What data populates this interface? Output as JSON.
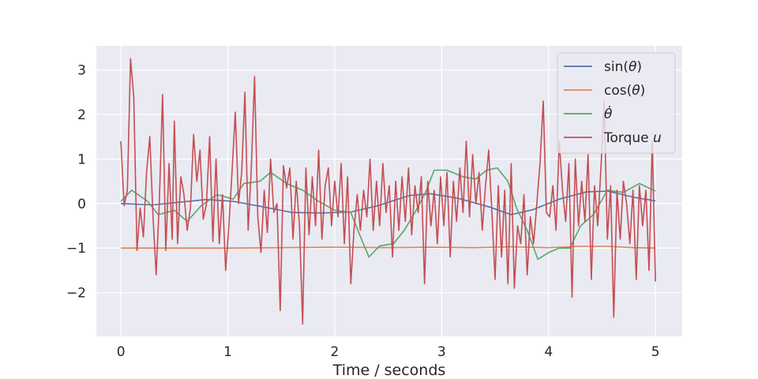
{
  "chart_data": {
    "type": "line",
    "xlabel": "Time / seconds",
    "ylabel": "",
    "xlim": [
      -0.23,
      5.25
    ],
    "ylim": [
      -2.98,
      3.54
    ],
    "xticks": [
      0,
      1,
      2,
      3,
      4,
      5
    ],
    "yticks": [
      3,
      2,
      1,
      0,
      -1,
      -2
    ],
    "ytick_labels": [
      "3",
      "2",
      "1",
      "0",
      "−1",
      "−2"
    ],
    "grid": true,
    "legend_position": "top-right",
    "background": "#eaeaf2",
    "series": [
      {
        "name": "sin(θ)",
        "label_parts": [
          "sin(",
          "θ",
          ")"
        ],
        "color": "#4c72b0",
        "points": [
          [
            0.0,
            0.0
          ],
          [
            0.3,
            -0.03
          ],
          [
            0.55,
            0.03
          ],
          [
            0.8,
            0.09
          ],
          [
            1.05,
            0.05
          ],
          [
            1.3,
            -0.06
          ],
          [
            1.6,
            -0.2
          ],
          [
            1.9,
            -0.21
          ],
          [
            2.15,
            -0.19
          ],
          [
            2.4,
            -0.05
          ],
          [
            2.7,
            0.18
          ],
          [
            2.9,
            0.22
          ],
          [
            3.15,
            0.12
          ],
          [
            3.45,
            -0.08
          ],
          [
            3.65,
            -0.25
          ],
          [
            3.85,
            -0.14
          ],
          [
            4.1,
            0.1
          ],
          [
            4.35,
            0.26
          ],
          [
            4.55,
            0.28
          ],
          [
            4.8,
            0.14
          ],
          [
            5.0,
            0.06
          ]
        ]
      },
      {
        "name": "cos(θ)",
        "label_parts": [
          "cos(",
          "θ",
          ")"
        ],
        "color": "#dd8452",
        "points": [
          [
            0.0,
            -1.0
          ],
          [
            0.5,
            -1.0
          ],
          [
            1.0,
            -1.0
          ],
          [
            1.5,
            -0.99
          ],
          [
            2.0,
            -0.98
          ],
          [
            2.5,
            -0.99
          ],
          [
            2.9,
            -0.98
          ],
          [
            3.3,
            -0.99
          ],
          [
            3.65,
            -0.97
          ],
          [
            4.0,
            -0.99
          ],
          [
            4.3,
            -0.96
          ],
          [
            4.55,
            -0.96
          ],
          [
            4.8,
            -0.99
          ],
          [
            5.0,
            -1.0
          ]
        ]
      },
      {
        "name": "θ̇",
        "label_parts": [
          "",
          "θ̇",
          ""
        ],
        "color": "#55a868",
        "points": [
          [
            0.0,
            0.05
          ],
          [
            0.1,
            0.3
          ],
          [
            0.25,
            0.05
          ],
          [
            0.35,
            -0.25
          ],
          [
            0.5,
            -0.15
          ],
          [
            0.62,
            -0.4
          ],
          [
            0.75,
            -0.05
          ],
          [
            0.9,
            0.2
          ],
          [
            1.05,
            0.1
          ],
          [
            1.15,
            0.45
          ],
          [
            1.3,
            0.5
          ],
          [
            1.4,
            0.7
          ],
          [
            1.55,
            0.45
          ],
          [
            1.7,
            0.3
          ],
          [
            1.85,
            0.05
          ],
          [
            2.0,
            -0.15
          ],
          [
            2.15,
            -0.2
          ],
          [
            2.25,
            -0.8
          ],
          [
            2.32,
            -1.2
          ],
          [
            2.42,
            -0.95
          ],
          [
            2.55,
            -0.9
          ],
          [
            2.65,
            -0.6
          ],
          [
            2.75,
            -0.2
          ],
          [
            2.85,
            0.25
          ],
          [
            2.93,
            0.75
          ],
          [
            3.05,
            0.75
          ],
          [
            3.2,
            0.6
          ],
          [
            3.32,
            0.55
          ],
          [
            3.42,
            0.75
          ],
          [
            3.52,
            0.8
          ],
          [
            3.62,
            0.5
          ],
          [
            3.7,
            -0.1
          ],
          [
            3.8,
            -0.6
          ],
          [
            3.9,
            -1.25
          ],
          [
            4.0,
            -1.1
          ],
          [
            4.1,
            -1.0
          ],
          [
            4.2,
            -1.0
          ],
          [
            4.3,
            -0.5
          ],
          [
            4.42,
            -0.25
          ],
          [
            4.55,
            0.3
          ],
          [
            4.7,
            0.25
          ],
          [
            4.85,
            0.45
          ],
          [
            5.0,
            0.28
          ]
        ]
      },
      {
        "name": "Torque u",
        "label_parts": [
          "Torque ",
          "u",
          ""
        ],
        "color": "#c44e52",
        "points": [
          [
            0.0,
            1.4
          ],
          [
            0.03,
            -0.05
          ],
          [
            0.06,
            0.3
          ],
          [
            0.09,
            3.25
          ],
          [
            0.12,
            2.4
          ],
          [
            0.15,
            -1.05
          ],
          [
            0.18,
            -0.1
          ],
          [
            0.21,
            -0.75
          ],
          [
            0.24,
            0.7
          ],
          [
            0.27,
            1.5
          ],
          [
            0.3,
            -0.3
          ],
          [
            0.33,
            -1.6
          ],
          [
            0.36,
            0.1
          ],
          [
            0.39,
            2.45
          ],
          [
            0.42,
            -1.05
          ],
          [
            0.45,
            0.9
          ],
          [
            0.48,
            -0.8
          ],
          [
            0.5,
            1.85
          ],
          [
            0.53,
            -0.9
          ],
          [
            0.56,
            0.6
          ],
          [
            0.59,
            0.2
          ],
          [
            0.62,
            -0.6
          ],
          [
            0.65,
            -0.1
          ],
          [
            0.68,
            1.55
          ],
          [
            0.71,
            0.5
          ],
          [
            0.74,
            1.2
          ],
          [
            0.77,
            -0.35
          ],
          [
            0.8,
            0.0
          ],
          [
            0.83,
            1.5
          ],
          [
            0.86,
            -0.85
          ],
          [
            0.89,
            1.0
          ],
          [
            0.92,
            -0.9
          ],
          [
            0.95,
            0.2
          ],
          [
            0.98,
            -1.5
          ],
          [
            1.01,
            -0.5
          ],
          [
            1.04,
            0.75
          ],
          [
            1.07,
            2.05
          ],
          [
            1.1,
            0.0
          ],
          [
            1.13,
            0.7
          ],
          [
            1.16,
            2.5
          ],
          [
            1.19,
            -0.6
          ],
          [
            1.22,
            0.8
          ],
          [
            1.25,
            2.85
          ],
          [
            1.28,
            -0.3
          ],
          [
            1.31,
            -1.1
          ],
          [
            1.34,
            0.3
          ],
          [
            1.37,
            -0.65
          ],
          [
            1.4,
            1.0
          ],
          [
            1.43,
            -0.2
          ],
          [
            1.46,
            0.0
          ],
          [
            1.49,
            -2.4
          ],
          [
            1.52,
            0.85
          ],
          [
            1.55,
            0.35
          ],
          [
            1.58,
            0.8
          ],
          [
            1.61,
            -0.8
          ],
          [
            1.64,
            0.5
          ],
          [
            1.67,
            -0.5
          ],
          [
            1.7,
            -2.7
          ],
          [
            1.73,
            0.8
          ],
          [
            1.76,
            -0.7
          ],
          [
            1.79,
            0.6
          ],
          [
            1.82,
            -0.5
          ],
          [
            1.85,
            1.2
          ],
          [
            1.88,
            -0.8
          ],
          [
            1.91,
            0.4
          ],
          [
            1.94,
            0.8
          ],
          [
            1.97,
            -0.5
          ],
          [
            2.0,
            0.5
          ],
          [
            2.03,
            -0.3
          ],
          [
            2.06,
            0.9
          ],
          [
            2.09,
            -0.9
          ],
          [
            2.12,
            0.6
          ],
          [
            2.15,
            -1.8
          ],
          [
            2.18,
            -0.6
          ],
          [
            2.21,
            0.2
          ],
          [
            2.24,
            -0.6
          ],
          [
            2.27,
            0.3
          ],
          [
            2.3,
            -0.3
          ],
          [
            2.33,
            1.0
          ],
          [
            2.36,
            -0.6
          ],
          [
            2.39,
            0.5
          ],
          [
            2.42,
            -0.5
          ],
          [
            2.45,
            0.9
          ],
          [
            2.48,
            -0.2
          ],
          [
            2.51,
            0.4
          ],
          [
            2.54,
            -1.2
          ],
          [
            2.57,
            0.5
          ],
          [
            2.6,
            -0.6
          ],
          [
            2.63,
            0.6
          ],
          [
            2.66,
            -0.4
          ],
          [
            2.69,
            0.8
          ],
          [
            2.72,
            -0.7
          ],
          [
            2.75,
            0.4
          ],
          [
            2.78,
            -0.2
          ],
          [
            2.81,
            0.6
          ],
          [
            2.84,
            -1.8
          ],
          [
            2.87,
            0.5
          ],
          [
            2.9,
            -0.5
          ],
          [
            2.93,
            0.3
          ],
          [
            2.96,
            -0.9
          ],
          [
            2.99,
            0.6
          ],
          [
            3.02,
            -0.5
          ],
          [
            3.05,
            0.7
          ],
          [
            3.08,
            -1.2
          ],
          [
            3.11,
            0.5
          ],
          [
            3.14,
            -0.4
          ],
          [
            3.17,
            0.8
          ],
          [
            3.2,
            -0.2
          ],
          [
            3.23,
            1.4
          ],
          [
            3.26,
            -0.3
          ],
          [
            3.29,
            1.1
          ],
          [
            3.32,
            0.0
          ],
          [
            3.35,
            0.7
          ],
          [
            3.38,
            -0.6
          ],
          [
            3.41,
            0.4
          ],
          [
            3.44,
            1.2
          ],
          [
            3.47,
            -0.2
          ],
          [
            3.5,
            -1.7
          ],
          [
            3.53,
            0.4
          ],
          [
            3.56,
            -1.2
          ],
          [
            3.59,
            0.3
          ],
          [
            3.62,
            -1.8
          ],
          [
            3.65,
            0.9
          ],
          [
            3.68,
            -1.9
          ],
          [
            3.71,
            -0.5
          ],
          [
            3.74,
            -0.9
          ],
          [
            3.77,
            0.2
          ],
          [
            3.8,
            -1.6
          ],
          [
            3.83,
            -0.3
          ],
          [
            3.86,
            -0.9
          ],
          [
            3.89,
            0.0
          ],
          [
            3.92,
            0.9
          ],
          [
            3.95,
            2.3
          ],
          [
            3.98,
            -0.2
          ],
          [
            4.01,
            -0.3
          ],
          [
            4.04,
            0.4
          ],
          [
            4.07,
            -0.6
          ],
          [
            4.1,
            1.4
          ],
          [
            4.13,
            0.3
          ],
          [
            4.16,
            -0.4
          ],
          [
            4.19,
            0.9
          ],
          [
            4.22,
            -2.1
          ],
          [
            4.25,
            1.0
          ],
          [
            4.28,
            -0.5
          ],
          [
            4.31,
            0.5
          ],
          [
            4.34,
            -0.4
          ],
          [
            4.37,
            1.1
          ],
          [
            4.4,
            -1.7
          ],
          [
            4.43,
            0.4
          ],
          [
            4.46,
            -0.5
          ],
          [
            4.49,
            0.8
          ],
          [
            4.52,
            2.3
          ],
          [
            4.55,
            -0.8
          ],
          [
            4.58,
            0.4
          ],
          [
            4.61,
            -2.55
          ],
          [
            4.64,
            0.3
          ],
          [
            4.67,
            -0.8
          ],
          [
            4.7,
            0.5
          ],
          [
            4.73,
            0.0
          ],
          [
            4.76,
            -0.9
          ],
          [
            4.79,
            0.3
          ],
          [
            4.82,
            -1.7
          ],
          [
            4.85,
            0.4
          ],
          [
            4.88,
            -0.5
          ],
          [
            4.91,
            0.3
          ],
          [
            4.94,
            -1.5
          ],
          [
            4.97,
            1.4
          ],
          [
            5.0,
            -1.75
          ]
        ]
      }
    ]
  }
}
